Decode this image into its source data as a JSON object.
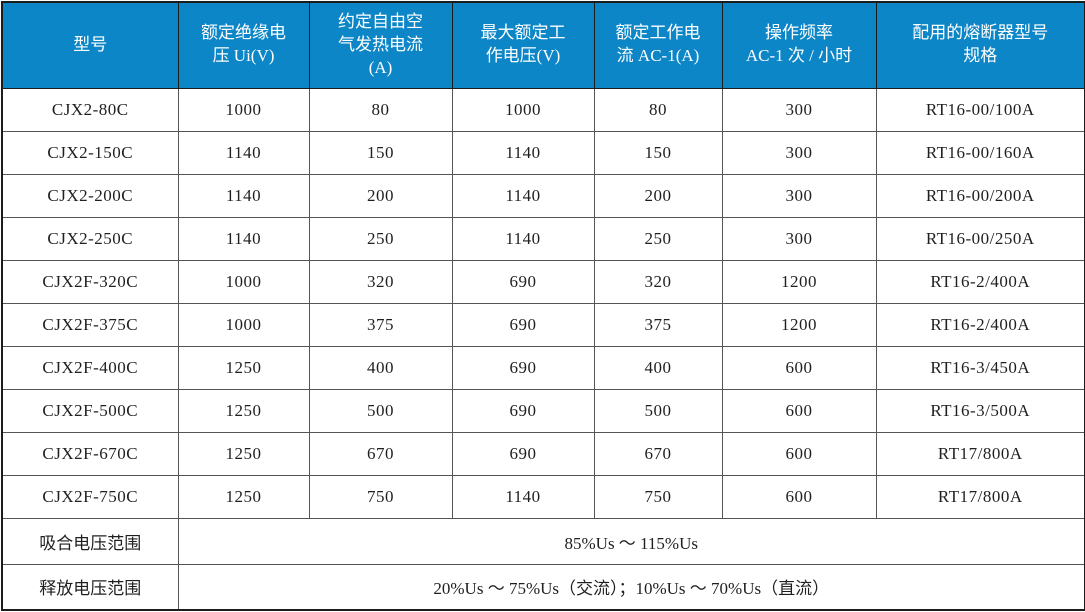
{
  "colors": {
    "header_bg": "#0d86c7",
    "header_text": "#ffffff",
    "body_text": "#1f1f1f",
    "grid_line": "#555555",
    "outer_border": "#1c1c1c",
    "row_bg": "#ffffff"
  },
  "table": {
    "columns": [
      "型号",
      "额定绝缘电\n压 Ui(V)",
      "约定自由空\n气发热电流\n(A)",
      "最大额定工\n作电压(V)",
      "额定工作电\n流 AC-1(A)",
      "操作频率\nAC-1 次 / 小时",
      "配用的熔断器型号\n规格"
    ],
    "rows": [
      [
        "CJX2-80C",
        "1000",
        "80",
        "1000",
        "80",
        "300",
        "RT16-00/100A"
      ],
      [
        "CJX2-150C",
        "1140",
        "150",
        "1140",
        "150",
        "300",
        "RT16-00/160A"
      ],
      [
        "CJX2-200C",
        "1140",
        "200",
        "1140",
        "200",
        "300",
        "RT16-00/200A"
      ],
      [
        "CJX2-250C",
        "1140",
        "250",
        "1140",
        "250",
        "300",
        "RT16-00/250A"
      ],
      [
        "CJX2F-320C",
        "1000",
        "320",
        "690",
        "320",
        "1200",
        "RT16-2/400A"
      ],
      [
        "CJX2F-375C",
        "1000",
        "375",
        "690",
        "375",
        "1200",
        "RT16-2/400A"
      ],
      [
        "CJX2F-400C",
        "1250",
        "400",
        "690",
        "400",
        "600",
        "RT16-3/450A"
      ],
      [
        "CJX2F-500C",
        "1250",
        "500",
        "690",
        "500",
        "600",
        "RT16-3/500A"
      ],
      [
        "CJX2F-670C",
        "1250",
        "670",
        "690",
        "670",
        "600",
        "RT17/800A"
      ],
      [
        "CJX2F-750C",
        "1250",
        "750",
        "1140",
        "750",
        "600",
        "RT17/800A"
      ]
    ],
    "footer": [
      {
        "label": "吸合电压范围",
        "value": "85%Us ～ 115%Us"
      },
      {
        "label": "释放电压范围",
        "value": "20%Us ～ 75%Us（交流）；10%Us ～ 70%Us（直流）"
      }
    ]
  }
}
